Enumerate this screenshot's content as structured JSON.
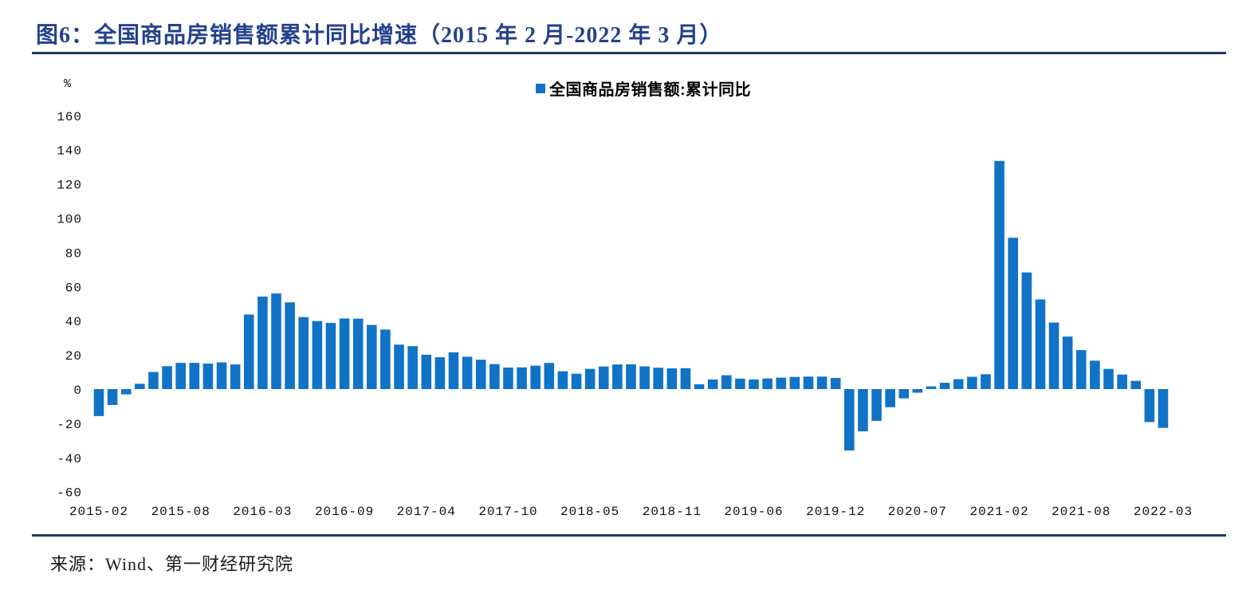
{
  "page": {
    "title": "图6：全国商品房销售额累计同比增速（2015 年 2 月-2022 年 3 月）",
    "source": "来源：Wind、第一财经研究院"
  },
  "colors": {
    "bar_blue": "#1173C6",
    "accent_navy": "#1F3864",
    "title_navy": "#24418C",
    "tick_text": "#111111"
  },
  "chart_data": {
    "type": "bar",
    "title": "全国商品房销售额累计同比增速（2015年2月-2022年3月）",
    "legend_label": "全国商品房销售额:累计同比",
    "legend_position": "top-center",
    "y_unit": "%",
    "xlabel": "",
    "ylabel": "",
    "ylim": [
      -60,
      160
    ],
    "y_ticks": [
      160,
      140,
      120,
      100,
      80,
      60,
      40,
      20,
      0,
      -20,
      -40,
      -60
    ],
    "grid": false,
    "categories": [
      "2015-02",
      "2015-03",
      "2015-04",
      "2015-05",
      "2015-06",
      "2015-07",
      "2015-08",
      "2015-09",
      "2015-10",
      "2015-11",
      "2015-12",
      "2016-02",
      "2016-03",
      "2016-04",
      "2016-05",
      "2016-06",
      "2016-07",
      "2016-08",
      "2016-09",
      "2016-10",
      "2016-11",
      "2016-12",
      "2017-02",
      "2017-03",
      "2017-04",
      "2017-05",
      "2017-06",
      "2017-07",
      "2017-08",
      "2017-09",
      "2017-10",
      "2017-11",
      "2017-12",
      "2018-02",
      "2018-03",
      "2018-04",
      "2018-05",
      "2018-06",
      "2018-07",
      "2018-08",
      "2018-09",
      "2018-10",
      "2018-11",
      "2018-12",
      "2019-02",
      "2019-03",
      "2019-04",
      "2019-05",
      "2019-06",
      "2019-07",
      "2019-08",
      "2019-09",
      "2019-10",
      "2019-11",
      "2019-12",
      "2020-02",
      "2020-03",
      "2020-04",
      "2020-05",
      "2020-06",
      "2020-07",
      "2020-08",
      "2020-09",
      "2020-10",
      "2020-11",
      "2020-12",
      "2021-02",
      "2021-03",
      "2021-04",
      "2021-05",
      "2021-06",
      "2021-07",
      "2021-08",
      "2021-09",
      "2021-10",
      "2021-11",
      "2021-12",
      "2022-02",
      "2022-03"
    ],
    "values": [
      -15.8,
      -9.3,
      -3.1,
      3.1,
      10.0,
      13.4,
      15.3,
      15.3,
      14.9,
      15.6,
      14.4,
      43.6,
      54.1,
      55.9,
      50.7,
      42.1,
      39.8,
      38.7,
      41.3,
      41.2,
      37.5,
      34.8,
      26.0,
      25.1,
      20.1,
      18.6,
      21.5,
      18.9,
      17.2,
      14.6,
      12.6,
      12.7,
      13.7,
      15.3,
      10.4,
      9.0,
      11.8,
      13.2,
      14.4,
      14.5,
      13.3,
      12.5,
      12.1,
      12.2,
      2.8,
      5.6,
      8.1,
      6.1,
      5.6,
      6.2,
      6.7,
      7.1,
      7.3,
      7.3,
      6.5,
      -35.9,
      -24.7,
      -18.6,
      -10.6,
      -5.4,
      -2.1,
      1.6,
      3.7,
      5.8,
      7.2,
      8.7,
      133.4,
      88.5,
      68.2,
      52.4,
      38.9,
      30.7,
      22.8,
      16.6,
      11.8,
      8.5,
      4.8,
      -19.3,
      -22.7
    ],
    "x_tick_labels": [
      "2015-02",
      "2015-08",
      "2016-03",
      "2016-09",
      "2017-04",
      "2017-10",
      "2018-05",
      "2018-11",
      "2019-06",
      "2019-12",
      "2020-07",
      "2021-02",
      "2021-08",
      "2022-03"
    ],
    "x_tick_indices": [
      0,
      6,
      12,
      18,
      24,
      30,
      36,
      42,
      48,
      54,
      60,
      66,
      72,
      78
    ]
  }
}
